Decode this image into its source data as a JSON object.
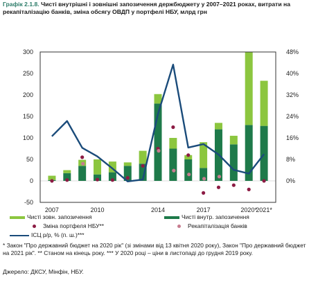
{
  "header": {
    "fig_num": "Графік 2.1.8.",
    "title": "Чисті внутрішні і зовнішні запозичення держбюджету у 2007–2021 роках, витрати на рекапіталізацію банків, зміна обсягу ОВДП у портфелі НБУ, млрд грн"
  },
  "footnotes": {
    "line1": "* Закон \"Про державний бюджет на 2020 рік\" (зі змінами від 13 квітня 2020 року), Закон \"Про державний бюджет на 2021 рік\". ** Станом на кінець року. *** У 2020 році – ціни в листопаді до грудня 2019 року.",
    "source": "Джерело: ДКСУ, Мінфін, НБУ."
  },
  "colors": {
    "external": "#8cc63f",
    "domestic": "#1e7a4a",
    "nbu": "#8c1c44",
    "recap": "#c77c8f",
    "cpi": "#1a4b7a"
  },
  "chart_data": {
    "type": "bar",
    "categories": [
      "2007",
      "2008",
      "2009",
      "2010",
      "2011",
      "2012",
      "2013",
      "2014",
      "2015",
      "2016",
      "2017",
      "2018",
      "2019",
      "2020*",
      "2021*"
    ],
    "x_tick_labels": [
      "2007",
      "2010",
      "2014",
      "2017",
      "2020*",
      "2021*"
    ],
    "x_tick_labels_idx": [
      0,
      3,
      7,
      10,
      13,
      14
    ],
    "ylim": [
      -50,
      300
    ],
    "y_ticks": [
      -50,
      0,
      50,
      100,
      150,
      200,
      250,
      300
    ],
    "y_tick_labels": [
      "-50",
      "0",
      "50",
      "100",
      "150",
      "200",
      "250",
      "300"
    ],
    "y2lim": [
      -8,
      48
    ],
    "y2_ticks": [
      0,
      8,
      16,
      24,
      32,
      40,
      48
    ],
    "y2_tick_labels": [
      "0%",
      "8%",
      "16%",
      "24%",
      "32%",
      "40%",
      "48%"
    ],
    "series": [
      {
        "name": "Чисті зовн. запозичення",
        "type": "stacked_bar",
        "values": [
          10,
          7,
          14,
          35,
          25,
          8,
          30,
          22,
          25,
          10,
          60,
          15,
          20,
          170,
          105
        ]
      },
      {
        "name": "Чисті внутр. запозичення",
        "type": "stacked_bar",
        "values": [
          2,
          18,
          35,
          15,
          20,
          35,
          40,
          180,
          75,
          50,
          30,
          120,
          85,
          130,
          128
        ]
      },
      {
        "name": "Зміна портфеля НБУ**",
        "type": "dot",
        "values": [
          0,
          2,
          55,
          3,
          2,
          7,
          35,
          75,
          125,
          60,
          -28,
          -15,
          -10,
          -20,
          0
        ]
      },
      {
        "name": "Рекапіталізація банків",
        "type": "dot",
        "values": [
          null,
          null,
          40,
          null,
          null,
          null,
          null,
          70,
          24,
          15,
          5,
          10,
          null,
          null,
          null
        ]
      },
      {
        "name": "ІСЦ р/р, % (п. ш.)***",
        "type": "line",
        "axis": "right",
        "values": [
          16.6,
          22.3,
          12.3,
          9.1,
          4.6,
          -0.2,
          0.5,
          24.9,
          43.3,
          12.4,
          13.7,
          9.8,
          4.1,
          2.7,
          10.0
        ]
      }
    ]
  }
}
